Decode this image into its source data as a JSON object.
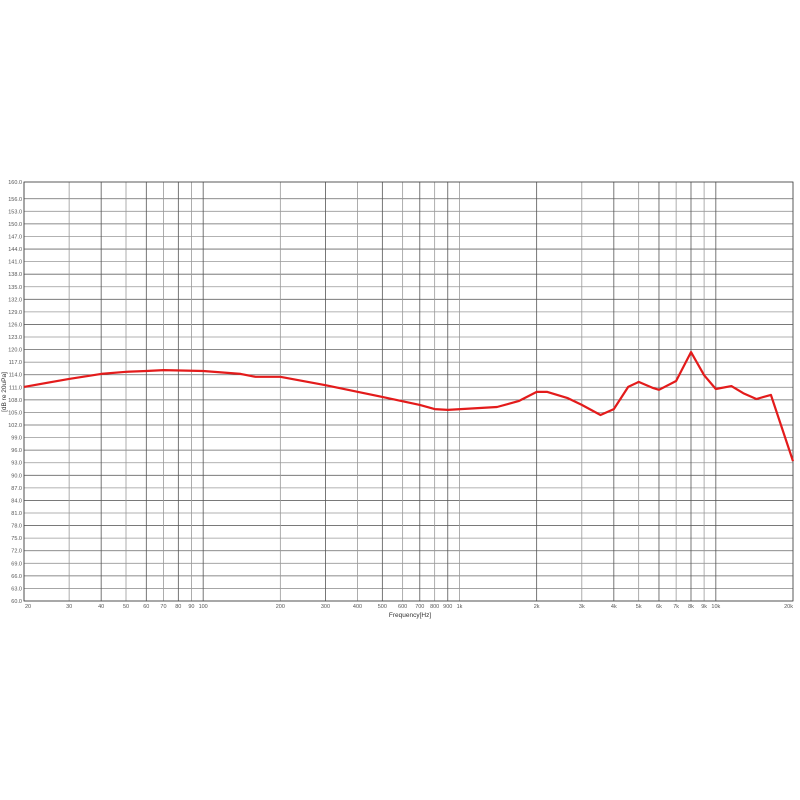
{
  "chart_data": {
    "type": "line",
    "title": "",
    "xlabel": "Frequency[Hz]",
    "ylabel": "[dB re 20uPa]",
    "xscale": "log",
    "xlim": [
      20,
      20000
    ],
    "ylim": [
      60,
      160
    ],
    "grid": true,
    "line_color": "#e31b1b",
    "x_ticks": [
      20,
      30,
      40,
      50,
      60,
      70,
      80,
      90,
      100,
      200,
      300,
      400,
      500,
      600,
      700,
      800,
      900,
      1000,
      2000,
      3000,
      4000,
      5000,
      6000,
      7000,
      8000,
      9000,
      10000,
      20000
    ],
    "x_tick_labels": [
      "20",
      "30",
      "40",
      "50",
      "60",
      "70",
      "80",
      "90",
      "100",
      "200",
      "300",
      "400",
      "500",
      "600",
      "700",
      "800",
      "900",
      "1k",
      "2k",
      "3k",
      "4k",
      "5k",
      "6k",
      "7k",
      "8k",
      "9k",
      "10k",
      "20k"
    ],
    "y_ticks": [
      60,
      63,
      66,
      69,
      72,
      75,
      78,
      81,
      84,
      87,
      90,
      93,
      96,
      99,
      102,
      105,
      108,
      111,
      114,
      117,
      120,
      123,
      126,
      129,
      132,
      135,
      138,
      141,
      144,
      147,
      150,
      153,
      156,
      160
    ],
    "y_tick_labels": [
      "60.0",
      "63.0",
      "66.0",
      "69.0",
      "72.0",
      "75.0",
      "78.0",
      "81.0",
      "84.0",
      "87.0",
      "90.0",
      "93.0",
      "96.0",
      "99.0",
      "102.0",
      "105.0",
      "108.0",
      "111.0",
      "114.0",
      "117.0",
      "120.0",
      "123.0",
      "126.0",
      "129.0",
      "132.0",
      "135.0",
      "138.0",
      "141.0",
      "144.0",
      "147.0",
      "150.0",
      "153.0",
      "156.0",
      "160.0"
    ],
    "series": [
      {
        "x": [
          20,
          30,
          40,
          50,
          60,
          70,
          100,
          140,
          160,
          200,
          300,
          500,
          700,
          800,
          900,
          1400,
          1700,
          2000,
          2200,
          2650,
          3000,
          3550,
          4000,
          4550,
          5000,
          5700,
          6000,
          7000,
          8000,
          9000,
          10000,
          11500,
          12800,
          14400,
          16400,
          20000
        ],
        "y": [
          111.1,
          113.0,
          114.2,
          114.7,
          114.9,
          115.1,
          114.9,
          114.2,
          113.5,
          113.5,
          111.5,
          108.7,
          106.8,
          105.8,
          105.6,
          106.3,
          107.7,
          109.9,
          109.9,
          108.4,
          106.8,
          104.4,
          105.8,
          111.1,
          112.3,
          110.8,
          110.4,
          112.5,
          119.4,
          113.9,
          110.6,
          111.3,
          109.6,
          108.2,
          109.2,
          93.4
        ]
      }
    ]
  }
}
